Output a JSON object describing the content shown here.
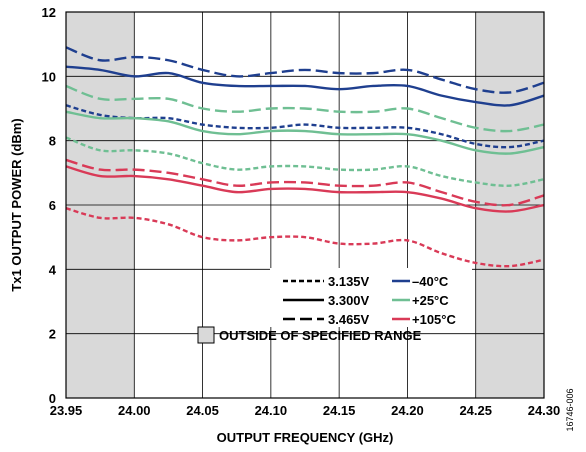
{
  "chart_data": {
    "type": "line",
    "title": "",
    "xlabel": "OUTPUT FREQUENCY (GHz)",
    "ylabel": "Tx1 OUTPUT POWER (dBm)",
    "xlim": [
      23.95,
      24.3
    ],
    "ylim": [
      0,
      12
    ],
    "x_ticks": [
      "23.95",
      "24.00",
      "24.05",
      "24.10",
      "24.15",
      "24.20",
      "24.25",
      "24.30"
    ],
    "y_ticks": [
      "0",
      "2",
      "4",
      "6",
      "8",
      "10",
      "12"
    ],
    "grid": true,
    "shaded_regions": [
      [
        23.95,
        24.0
      ],
      [
        24.25,
        24.3
      ]
    ],
    "shaded_label": "OUTSIDE OF SPECIFIED RANGE",
    "figure_id": "16746-006",
    "legend": {
      "placement": "bottom-right",
      "voltages": [
        {
          "label": "3.135V",
          "style": "short-dash"
        },
        {
          "label": "3.300V",
          "style": "solid"
        },
        {
          "label": "3.465V",
          "style": "long-dash"
        }
      ],
      "temperatures": [
        {
          "label": "–40°C",
          "color": "#1f3f8f"
        },
        {
          "label": "+25°C",
          "color": "#6fbf93"
        },
        {
          "label": "+105°C",
          "color": "#d93a57"
        }
      ]
    },
    "x": [
      23.95,
      23.975,
      24.0,
      24.025,
      24.05,
      24.075,
      24.1,
      24.125,
      24.15,
      24.175,
      24.2,
      24.225,
      24.25,
      24.275,
      24.3
    ],
    "series": [
      {
        "voltage": "3.135V",
        "temperature": "–40°C",
        "color": "#1f3f8f",
        "style": "short-dash",
        "values": [
          9.1,
          8.8,
          8.7,
          8.7,
          8.5,
          8.4,
          8.4,
          8.5,
          8.4,
          8.4,
          8.4,
          8.2,
          7.9,
          7.8,
          8.0
        ]
      },
      {
        "voltage": "3.300V",
        "temperature": "–40°C",
        "color": "#1f3f8f",
        "style": "solid",
        "values": [
          10.3,
          10.2,
          10.0,
          10.1,
          9.8,
          9.7,
          9.7,
          9.7,
          9.6,
          9.7,
          9.7,
          9.4,
          9.2,
          9.1,
          9.4
        ]
      },
      {
        "voltage": "3.465V",
        "temperature": "–40°C",
        "color": "#1f3f8f",
        "style": "long-dash",
        "values": [
          10.9,
          10.5,
          10.6,
          10.5,
          10.2,
          10.0,
          10.1,
          10.2,
          10.1,
          10.1,
          10.2,
          9.9,
          9.6,
          9.5,
          9.8
        ]
      },
      {
        "voltage": "3.135V",
        "temperature": "+25°C",
        "color": "#6fbf93",
        "style": "short-dash",
        "values": [
          8.1,
          7.7,
          7.7,
          7.6,
          7.3,
          7.1,
          7.2,
          7.2,
          7.1,
          7.1,
          7.2,
          6.9,
          6.7,
          6.6,
          6.8
        ]
      },
      {
        "voltage": "3.300V",
        "temperature": "+25°C",
        "color": "#6fbf93",
        "style": "solid",
        "values": [
          8.9,
          8.7,
          8.7,
          8.6,
          8.3,
          8.2,
          8.3,
          8.3,
          8.2,
          8.2,
          8.2,
          8.0,
          7.7,
          7.6,
          7.8
        ]
      },
      {
        "voltage": "3.465V",
        "temperature": "+25°C",
        "color": "#6fbf93",
        "style": "long-dash",
        "values": [
          9.7,
          9.3,
          9.3,
          9.3,
          9.0,
          8.9,
          9.0,
          9.0,
          8.9,
          8.9,
          9.0,
          8.7,
          8.4,
          8.3,
          8.5
        ]
      },
      {
        "voltage": "3.135V",
        "temperature": "+105°C",
        "color": "#d93a57",
        "style": "short-dash",
        "values": [
          5.9,
          5.6,
          5.6,
          5.4,
          5.0,
          4.9,
          5.0,
          5.0,
          4.8,
          4.8,
          4.9,
          4.5,
          4.2,
          4.1,
          4.3
        ]
      },
      {
        "voltage": "3.300V",
        "temperature": "+105°C",
        "color": "#d93a57",
        "style": "solid",
        "values": [
          7.2,
          6.9,
          6.9,
          6.8,
          6.6,
          6.4,
          6.5,
          6.5,
          6.4,
          6.4,
          6.4,
          6.2,
          5.9,
          5.8,
          6.0
        ]
      },
      {
        "voltage": "3.465V",
        "temperature": "+105°C",
        "color": "#d93a57",
        "style": "long-dash",
        "values": [
          7.4,
          7.1,
          7.1,
          7.0,
          6.8,
          6.6,
          6.7,
          6.7,
          6.6,
          6.6,
          6.7,
          6.4,
          6.1,
          6.0,
          6.3
        ]
      }
    ]
  }
}
